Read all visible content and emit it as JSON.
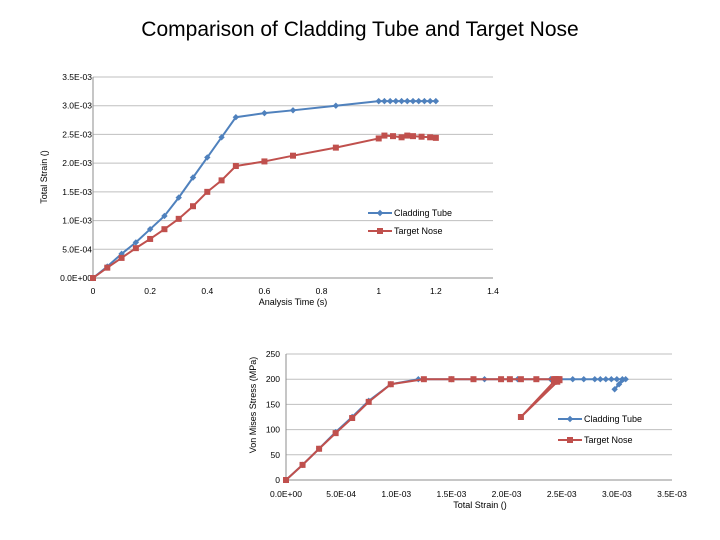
{
  "page": {
    "title": "Comparison of Cladding Tube and Target Nose"
  },
  "colors": {
    "series1": "#4f81bd",
    "series2": "#c0504d",
    "grid": "#bfbfbf",
    "axis": "#8c8c8c"
  },
  "chart_data": [
    {
      "type": "line",
      "title": "",
      "xlabel": "Analysis Time (s)",
      "ylabel": "Total Strain ()",
      "xlim": [
        0,
        1.4
      ],
      "ylim": [
        0,
        0.0035
      ],
      "x_ticks": [
        "0",
        "0.2",
        "0.4",
        "0.6",
        "0.8",
        "1",
        "1.2",
        "1.4"
      ],
      "y_ticks": [
        "0.0E+00",
        "5.0E-04",
        "1.0E-03",
        "1.5E-03",
        "2.0E-03",
        "2.5E-03",
        "3.0E-03",
        "3.5E-03"
      ],
      "grid": "horizontal",
      "legend_position": "right",
      "series": [
        {
          "name": "Cladding Tube",
          "marker": "diamond",
          "x": [
            0,
            0.05,
            0.1,
            0.15,
            0.2,
            0.25,
            0.3,
            0.35,
            0.4,
            0.45,
            0.5,
            0.6,
            0.7,
            0.85,
            1.0,
            1.02,
            1.04,
            1.06,
            1.08,
            1.1,
            1.12,
            1.14,
            1.16,
            1.18,
            1.2
          ],
          "y": [
            0,
            0.0002,
            0.00042,
            0.00062,
            0.00085,
            0.00108,
            0.0014,
            0.00175,
            0.0021,
            0.00245,
            0.0028,
            0.00287,
            0.00292,
            0.003,
            0.00308,
            0.00308,
            0.00308,
            0.00308,
            0.00308,
            0.00308,
            0.00308,
            0.00308,
            0.00308,
            0.00308,
            0.00308
          ]
        },
        {
          "name": "Target Nose",
          "marker": "square",
          "x": [
            0,
            0.05,
            0.1,
            0.15,
            0.2,
            0.25,
            0.3,
            0.35,
            0.4,
            0.45,
            0.5,
            0.6,
            0.7,
            0.85,
            1.0,
            1.02,
            1.05,
            1.08,
            1.1,
            1.12,
            1.15,
            1.18,
            1.2
          ],
          "y": [
            0,
            0.00018,
            0.00035,
            0.00052,
            0.00068,
            0.00085,
            0.00103,
            0.00125,
            0.0015,
            0.0017,
            0.00195,
            0.00203,
            0.00213,
            0.00227,
            0.00243,
            0.00248,
            0.00247,
            0.00245,
            0.00248,
            0.00247,
            0.00246,
            0.00245,
            0.00244
          ]
        }
      ]
    },
    {
      "type": "line",
      "title": "",
      "xlabel": "Total Strain ()",
      "ylabel": "Von Mises Stress (MPa)",
      "xlim": [
        0,
        0.0035
      ],
      "ylim": [
        0,
        250
      ],
      "x_ticks": [
        "0.0E+00",
        "5.0E-04",
        "1.0E-03",
        "1.5E-03",
        "2.0E-03",
        "2.5E-03",
        "3.0E-03",
        "3.5E-03"
      ],
      "y_ticks": [
        "0",
        "50",
        "100",
        "150",
        "200",
        "250"
      ],
      "grid": "horizontal",
      "legend_position": "right",
      "series": [
        {
          "name": "Cladding Tube",
          "marker": "diamond",
          "x": [
            0,
            0.00015,
            0.0003,
            0.00045,
            0.0006,
            0.00075,
            0.00095,
            0.0012,
            0.0015,
            0.0018,
            0.0021,
            0.0024,
            0.0026,
            0.0027,
            0.0028,
            0.00285,
            0.0029,
            0.00295,
            0.003,
            0.00305,
            0.00298,
            0.00302,
            0.00308
          ],
          "y": [
            0,
            30,
            62,
            95,
            125,
            157,
            190,
            200,
            200,
            200,
            200,
            200,
            200,
            200,
            200,
            200,
            200,
            200,
            200,
            200,
            180,
            190,
            200
          ]
        },
        {
          "name": "Target Nose",
          "marker": "square",
          "x": [
            0,
            0.00015,
            0.0003,
            0.00045,
            0.0006,
            0.00075,
            0.00095,
            0.00125,
            0.0015,
            0.0017,
            0.00195,
            0.00203,
            0.00213,
            0.00227,
            0.00243,
            0.00248,
            0.00247,
            0.00245,
            0.00244,
            0.00248,
            0.00246,
            0.00213,
            0.00243
          ],
          "y": [
            0,
            30,
            62,
            93,
            123,
            155,
            190,
            200,
            200,
            200,
            200,
            200,
            200,
            200,
            200,
            200,
            200,
            200,
            200,
            198,
            195,
            125,
            195
          ]
        }
      ]
    }
  ]
}
